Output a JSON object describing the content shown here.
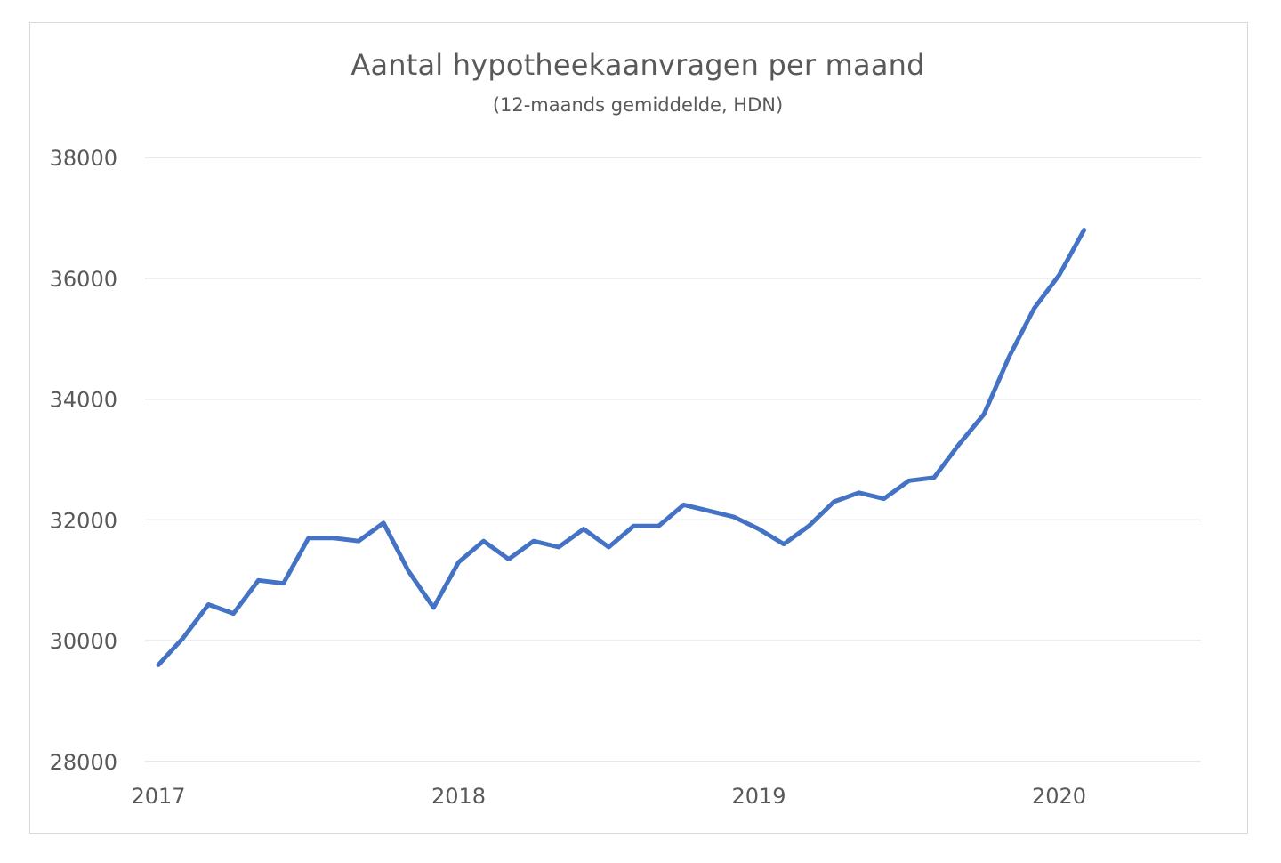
{
  "chart_data": {
    "type": "line",
    "title": "Aantal hypotheekaanvragen per maand",
    "subtitle": "(12-maands gemiddelde, HDN)",
    "xlabel": "",
    "ylabel": "",
    "ylim": [
      28000,
      38000
    ],
    "y_ticks": [
      28000,
      30000,
      32000,
      34000,
      36000,
      38000
    ],
    "x_ticks": [
      "2017",
      "2018",
      "2019",
      "2020"
    ],
    "grid": true,
    "legend": "none",
    "series": [
      {
        "color": "#4472c4",
        "x": [
          "2017-01",
          "2017-02",
          "2017-03",
          "2017-04",
          "2017-05",
          "2017-06",
          "2017-07",
          "2017-08",
          "2017-09",
          "2017-10",
          "2017-11",
          "2017-12",
          "2018-01",
          "2018-02",
          "2018-03",
          "2018-04",
          "2018-05",
          "2018-06",
          "2018-07",
          "2018-08",
          "2018-09",
          "2018-10",
          "2018-11",
          "2018-12",
          "2019-01",
          "2019-02",
          "2019-03",
          "2019-04",
          "2019-05",
          "2019-06",
          "2019-07",
          "2019-08",
          "2019-09",
          "2019-10",
          "2019-11",
          "2019-12",
          "2020-01",
          "2020-02",
          "2020-03",
          "2020-04",
          "2020-05"
        ],
        "values": [
          29600,
          30050,
          30600,
          30450,
          31000,
          30950,
          31700,
          31700,
          31650,
          31950,
          31150,
          30550,
          31300,
          31650,
          31350,
          31650,
          31550,
          31850,
          31550,
          31900,
          31900,
          32250,
          32150,
          32050,
          31850,
          31600,
          31900,
          32300,
          32450,
          32350,
          32650,
          32700,
          33250,
          33750,
          34700,
          35500,
          36050,
          36800,
          null,
          null,
          null
        ]
      }
    ]
  }
}
